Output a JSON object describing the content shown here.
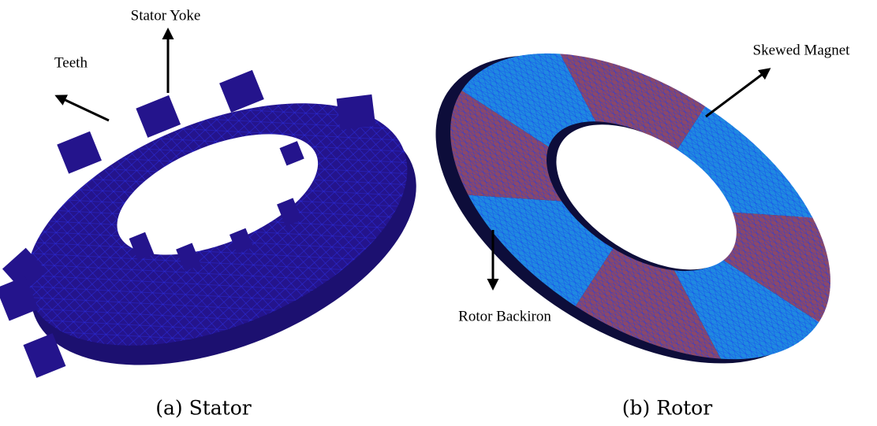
{
  "figures": [
    {
      "caption": "(a) Stator",
      "annotations": [
        "Stator Yoke",
        "Teeth"
      ]
    },
    {
      "caption": "(b) Rotor",
      "annotations": [
        "Skewed Magnet",
        "Rotor Backiron"
      ]
    }
  ]
}
